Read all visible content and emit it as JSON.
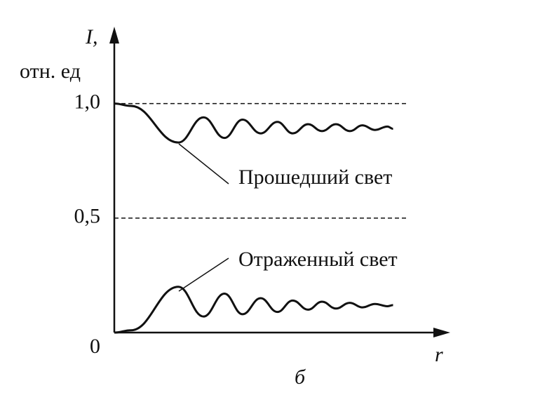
{
  "chart_data": {
    "type": "line",
    "ylabel": [
      "I,",
      "отн. ед"
    ],
    "xlabel": "r",
    "caption": "б",
    "x": [
      0,
      0.6,
      2.3,
      3.2,
      3.95,
      4.6,
      5.25,
      5.85,
      6.4,
      6.95,
      7.45,
      7.95,
      8.45,
      8.9,
      9.35,
      9.8,
      10
    ],
    "series": [
      {
        "name": "Прошедший свет",
        "color": "#111111",
        "values": [
          1.0,
          0.99,
          0.83,
          0.94,
          0.85,
          0.93,
          0.87,
          0.92,
          0.87,
          0.91,
          0.88,
          0.91,
          0.88,
          0.905,
          0.885,
          0.9,
          0.89
        ]
      },
      {
        "name": "Отраженный свет",
        "color": "#111111",
        "values": [
          0,
          0.01,
          0.2,
          0.07,
          0.17,
          0.08,
          0.15,
          0.09,
          0.14,
          0.1,
          0.135,
          0.105,
          0.13,
          0.11,
          0.125,
          0.115,
          0.12
        ]
      }
    ],
    "xlim": [
      0,
      12
    ],
    "ylim": [
      0,
      1.33
    ],
    "yticks": [
      0,
      {
        "value": 0.5,
        "label": "0,5"
      },
      {
        "value": 1,
        "label": "1,0"
      }
    ],
    "grid": true
  }
}
